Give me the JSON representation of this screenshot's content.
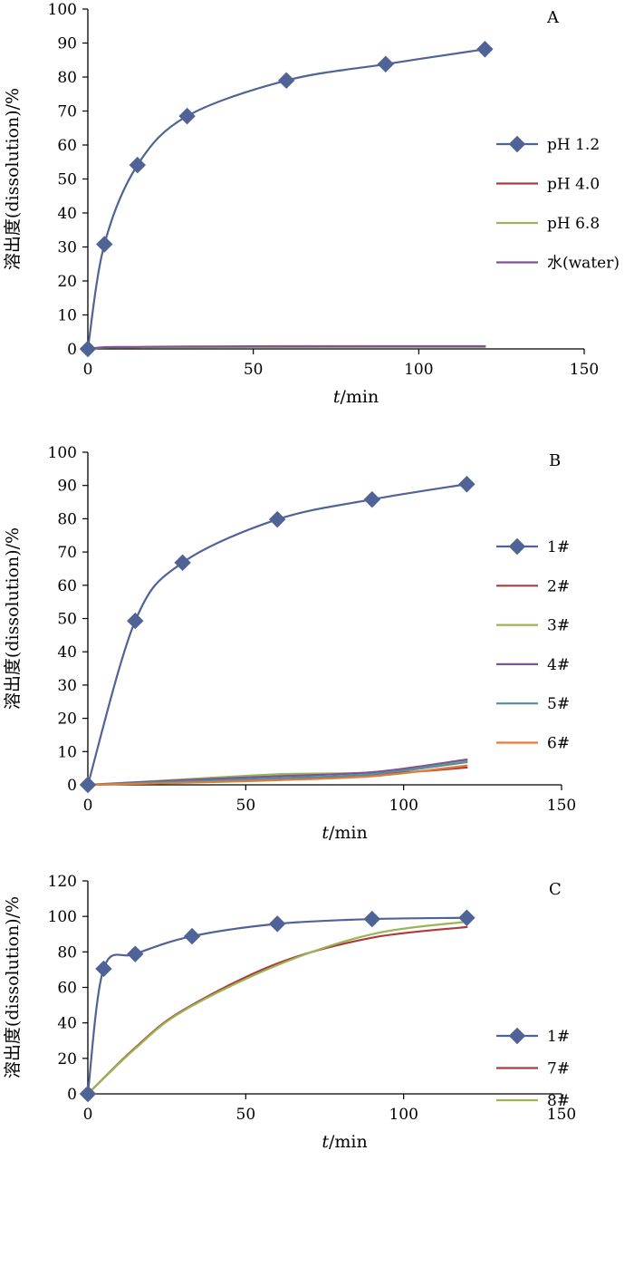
{
  "figure": {
    "colors": {
      "series_blue": "#4F6396",
      "series_red": "#B03A3A",
      "series_green": "#9AB555",
      "series_purple": "#7D5495",
      "series_teal": "#4E8EA8",
      "series_orange": "#E07E34",
      "axis": "#000000"
    }
  },
  "chart_data": [
    {
      "type": "line",
      "panel": "A",
      "xlabel_italic": "t",
      "xlabel_rest": "/min",
      "ylabel": "溶出度(dissolution)/%",
      "xlim": [
        0,
        150
      ],
      "ylim": [
        0,
        100
      ],
      "xticks": [
        0,
        50,
        100,
        150
      ],
      "yticks": [
        0,
        10,
        20,
        30,
        40,
        50,
        60,
        70,
        80,
        90,
        100
      ],
      "grid": false,
      "legend_position": "right",
      "series": [
        {
          "name": "pH 1.2",
          "color": "#4F6396",
          "marker": "diamond",
          "x": [
            0,
            5,
            15,
            30,
            60,
            90,
            120
          ],
          "y": [
            0,
            30.8,
            54.1,
            68.5,
            79.0,
            83.8,
            88.2
          ]
        },
        {
          "name": "pH 4.0",
          "color": "#B03A3A",
          "marker": "none",
          "x": [
            0,
            5,
            15,
            30,
            60,
            90,
            120
          ],
          "y": [
            0,
            0.4,
            0.5,
            0.6,
            0.6,
            0.7,
            0.7
          ]
        },
        {
          "name": "pH 6.8",
          "color": "#9AB555",
          "marker": "none",
          "x": [
            0,
            5,
            15,
            30,
            60,
            90,
            120
          ],
          "y": [
            0,
            0.4,
            0.5,
            0.5,
            0.6,
            0.6,
            0.6
          ]
        },
        {
          "name": "水(water)",
          "color": "#7D5495",
          "marker": "none",
          "x": [
            0,
            5,
            15,
            30,
            60,
            90,
            120
          ],
          "y": [
            0,
            0.5,
            0.6,
            0.7,
            0.8,
            0.8,
            0.8
          ]
        }
      ]
    },
    {
      "type": "line",
      "panel": "B",
      "xlabel_italic": "t",
      "xlabel_rest": "/min",
      "ylabel": "溶出度(dissolution)/%",
      "xlim": [
        0,
        150
      ],
      "ylim": [
        0,
        100
      ],
      "xticks": [
        0,
        50,
        100,
        150
      ],
      "yticks": [
        0,
        10,
        20,
        30,
        40,
        50,
        60,
        70,
        80,
        90,
        100
      ],
      "grid": false,
      "legend_position": "right",
      "series": [
        {
          "name": "1#",
          "color": "#4F6396",
          "marker": "diamond",
          "x": [
            0,
            15,
            30,
            60,
            90,
            120
          ],
          "y": [
            0,
            49.3,
            66.8,
            79.8,
            85.8,
            90.4
          ]
        },
        {
          "name": "2#",
          "color": "#B03A3A",
          "marker": "none",
          "x": [
            0,
            15,
            30,
            60,
            90,
            120
          ],
          "y": [
            0,
            0.4,
            0.8,
            1.8,
            3.0,
            5.2
          ]
        },
        {
          "name": "3#",
          "color": "#9AB555",
          "marker": "none",
          "x": [
            0,
            15,
            30,
            60,
            90,
            120
          ],
          "y": [
            0,
            0.8,
            1.6,
            3.2,
            3.8,
            7.2
          ]
        },
        {
          "name": "4#",
          "color": "#7D5495",
          "marker": "none",
          "x": [
            0,
            15,
            30,
            60,
            90,
            120
          ],
          "y": [
            0,
            0.7,
            1.4,
            2.6,
            3.8,
            7.6
          ]
        },
        {
          "name": "5#",
          "color": "#4E8EA8",
          "marker": "none",
          "x": [
            0,
            15,
            30,
            60,
            90,
            120
          ],
          "y": [
            0,
            0.5,
            1.0,
            2.0,
            3.2,
            6.8
          ]
        },
        {
          "name": "6#",
          "color": "#E07E34",
          "marker": "none",
          "x": [
            0,
            15,
            30,
            60,
            90,
            120
          ],
          "y": [
            0,
            0.3,
            0.6,
            1.4,
            2.6,
            5.8
          ]
        }
      ]
    },
    {
      "type": "line",
      "panel": "C",
      "xlabel_italic": "t",
      "xlabel_rest": "/min",
      "ylabel": "溶出度(dissolution)/%",
      "xlim": [
        0,
        150
      ],
      "ylim": [
        0,
        120
      ],
      "xticks": [
        0,
        50,
        100,
        150
      ],
      "yticks": [
        0,
        20,
        40,
        60,
        80,
        100,
        120
      ],
      "grid": false,
      "legend_position": "right",
      "series": [
        {
          "name": "1#",
          "color": "#4F6396",
          "marker": "diamond",
          "x": [
            0,
            5,
            15,
            33,
            60,
            90,
            120
          ],
          "y": [
            0,
            70.5,
            78.8,
            88.8,
            95.8,
            98.5,
            99.2
          ]
        },
        {
          "name": "7#",
          "color": "#B03A3A",
          "marker": "none",
          "x": [
            0,
            15,
            30,
            60,
            90,
            120
          ],
          "y": [
            0,
            26.0,
            47.0,
            73.5,
            88.0,
            94.0
          ]
        },
        {
          "name": "8#",
          "color": "#9AB555",
          "marker": "none",
          "x": [
            0,
            15,
            30,
            60,
            90,
            120
          ],
          "y": [
            0,
            25.5,
            46.5,
            72.5,
            90.0,
            97.0
          ]
        }
      ]
    }
  ]
}
